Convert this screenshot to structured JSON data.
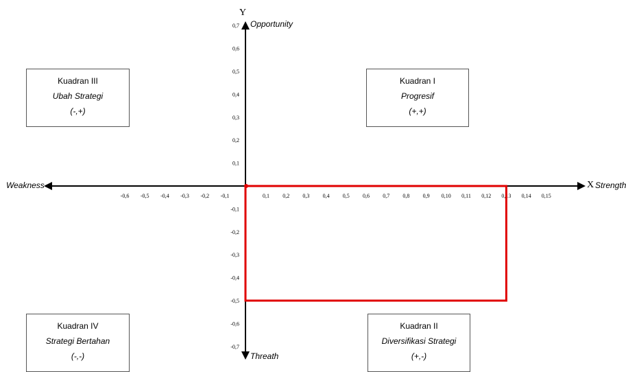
{
  "axes": {
    "x_letter": "X",
    "y_letter": "Y",
    "x_positive_label": "Strength",
    "x_negative_label": "Weakness",
    "y_positive_label": "Opportunity",
    "y_negative_label": "Threath"
  },
  "ticks": {
    "x_positive": [
      "0,1",
      "0,2",
      "0,3",
      "0,4",
      "0,5",
      "0,6",
      "0,7",
      "0,8",
      "0,9",
      "0,10",
      "0,11",
      "0,12",
      "0,13",
      "0,14",
      "0,15"
    ],
    "x_negative": [
      "-0,1",
      "-0,2",
      "-0,3",
      "-0,4",
      "-0,5",
      "-0,6"
    ],
    "y_positive": [
      "0,1",
      "0,2",
      "0,3",
      "0,4",
      "0,5",
      "0,6",
      "0,7"
    ],
    "y_negative": [
      "-0,1",
      "-0,2",
      "-0,3",
      "-0,4",
      "-0,5",
      "-0,6",
      "-0,7"
    ]
  },
  "quadrants": {
    "q1": {
      "title": "Kuadran I",
      "strategy": "Progresif",
      "sign": "(+,+)"
    },
    "q2": {
      "title": "Kuadran II",
      "strategy": "Diversifikasi Strategi",
      "sign": "(+,-)"
    },
    "q3": {
      "title": "Kuadran III",
      "strategy": "Ubah Strategi",
      "sign": "(-,+)"
    },
    "q4": {
      "title": "Kuadran IV",
      "strategy": "Strategi Bertahan",
      "sign": "(-,-)"
    }
  },
  "position": {
    "x_tick_index": 13,
    "y_value": -0.5,
    "color": "#e00000"
  }
}
